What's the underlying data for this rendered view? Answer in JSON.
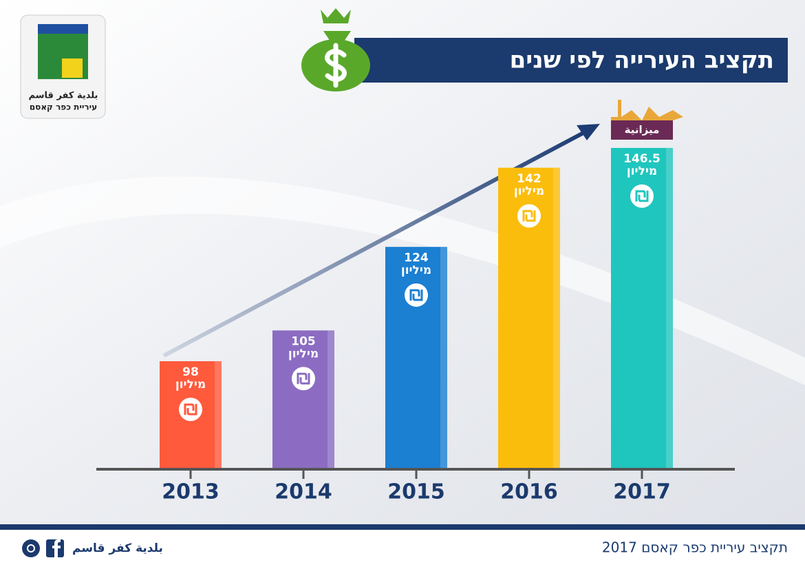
{
  "header": {
    "title": "תקציב העירייה לפי שנים"
  },
  "logo": {
    "line1": "بلدية كفر قاسم",
    "line2": "עיריית כפר קאסם"
  },
  "chart_data": {
    "type": "bar",
    "categories": [
      "2013",
      "2014",
      "2015",
      "2016",
      "2017"
    ],
    "values": [
      98,
      105,
      124,
      142,
      146.5
    ],
    "unit": "מיליון",
    "colors": [
      "#ff5a3c",
      "#8b6cc2",
      "#1b7fd2",
      "#fbbd0c",
      "#1fc6be"
    ],
    "badge": "ميزانية"
  },
  "footer": {
    "left": "بلدية كفر قاسم",
    "right": "תקציב עיריית כפר קאסם 2017"
  }
}
